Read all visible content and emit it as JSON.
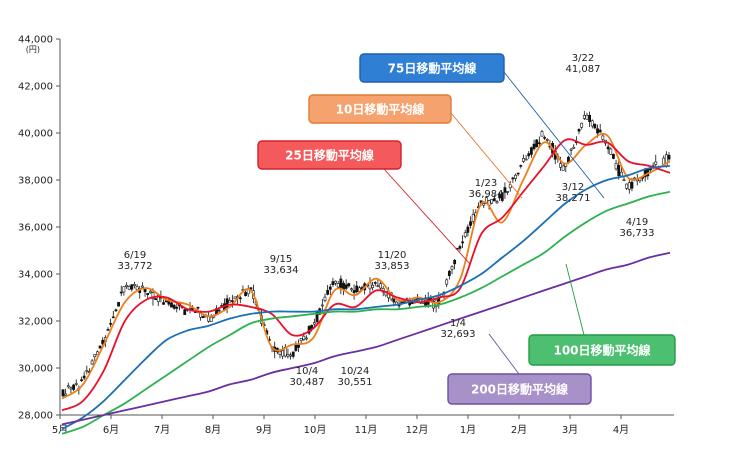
{
  "chart_data": {
    "type": "line",
    "yunit": "(円)",
    "ylim": [
      28000,
      44000
    ],
    "yticks": [
      "28,000",
      "30,000",
      "32,000",
      "34,000",
      "36,000",
      "38,000",
      "40,000",
      "42,000",
      "44,000"
    ],
    "xticks": [
      "5月",
      "6月",
      "7月",
      "8月",
      "9月",
      "10月",
      "11月",
      "12月",
      "1月",
      "2月",
      "3月",
      "4月"
    ],
    "grid": false,
    "annotations": [
      {
        "date": "6/19",
        "value": "33,772"
      },
      {
        "date": "9/15",
        "value": "33,634"
      },
      {
        "date": "10/4",
        "value": "30,487"
      },
      {
        "date": "10/24",
        "value": "30,551"
      },
      {
        "date": "11/20",
        "value": "33,853"
      },
      {
        "date": "1/4",
        "value": "32,693"
      },
      {
        "date": "1/23",
        "value": "36,984"
      },
      {
        "date": "3/12",
        "value": "38,271"
      },
      {
        "date": "3/22",
        "value": "41,087"
      },
      {
        "date": "4/19",
        "value": "36,733"
      }
    ],
    "series": [
      {
        "name": "10日移動平均線",
        "color": "#ee7f1b",
        "values": [
          28700,
          29300,
          31000,
          32800,
          33400,
          32900,
          32700,
          32200,
          32600,
          33300,
          30900,
          31000,
          31300,
          33300,
          33100,
          33800,
          32900,
          33000,
          32800,
          33800,
          37000,
          36200,
          38000,
          39600,
          38700,
          39500,
          39900,
          38100,
          38300,
          38800
        ]
      },
      {
        "name": "25日移動平均線",
        "color": "#e8102a",
        "values": [
          28200,
          28600,
          29900,
          32000,
          32900,
          33000,
          32500,
          32400,
          32700,
          32600,
          32300,
          31400,
          31700,
          32700,
          32600,
          33300,
          33000,
          32800,
          33000,
          33400,
          35700,
          36400,
          37500,
          38600,
          39700,
          39500,
          39600,
          38800,
          38600,
          38300
        ]
      },
      {
        "name": "75日移動平均線",
        "color": "#1a6fb5",
        "values": [
          27400,
          27900,
          28600,
          29500,
          30400,
          31200,
          31600,
          31800,
          32100,
          32300,
          32400,
          32400,
          32400,
          32500,
          32500,
          32600,
          32700,
          32900,
          33100,
          33500,
          34000,
          34700,
          35400,
          36200,
          37000,
          37600,
          38000,
          38200,
          38500,
          38600
        ]
      },
      {
        "name": "100日移動平均線",
        "color": "#2db24e",
        "values": [
          27200,
          27500,
          28000,
          28500,
          29100,
          29700,
          30300,
          30900,
          31400,
          31900,
          32100,
          32200,
          32300,
          32400,
          32400,
          32500,
          32500,
          32600,
          32700,
          33000,
          33400,
          33900,
          34400,
          34900,
          35600,
          36200,
          36700,
          37000,
          37300,
          37500
        ]
      },
      {
        "name": "200日移動平均線",
        "color": "#6a2fa0",
        "values": [
          27600,
          27800,
          28000,
          28200,
          28400,
          28600,
          28800,
          29000,
          29300,
          29500,
          29800,
          30000,
          30200,
          30500,
          30700,
          30900,
          31200,
          31500,
          31800,
          32100,
          32400,
          32700,
          33000,
          33300,
          33600,
          33900,
          34200,
          34400,
          34700,
          34900
        ]
      },
      {
        "name": "株価",
        "values": [
          28900,
          29500,
          31200,
          33500,
          33300,
          32700,
          32500,
          32100,
          32900,
          33400,
          30800,
          30600,
          31900,
          33700,
          33300,
          33600,
          32800,
          32800,
          32800,
          35200,
          37000,
          37200,
          38700,
          40000,
          38400,
          40800,
          39600,
          37600,
          38400,
          38900
        ]
      }
    ],
    "legend": [
      {
        "label": "75日移動平均線",
        "color": "#2f7fd5",
        "border": "#1d5fb0",
        "text": "#ffffff"
      },
      {
        "label": "10日移動平均線",
        "color": "#f5a26f",
        "border": "#e17a36",
        "text": "#ffffff"
      },
      {
        "label": "25日移動平均線",
        "color": "#f4595b",
        "border": "#d4202a",
        "text": "#ffffff"
      },
      {
        "label": "100日移動平均線",
        "color": "#4cc070",
        "border": "#249b47",
        "text": "#ffffff"
      },
      {
        "label": "200日移動平均線",
        "color": "#a890c8",
        "border": "#6e4fa0",
        "text": "#ffffff"
      }
    ]
  }
}
